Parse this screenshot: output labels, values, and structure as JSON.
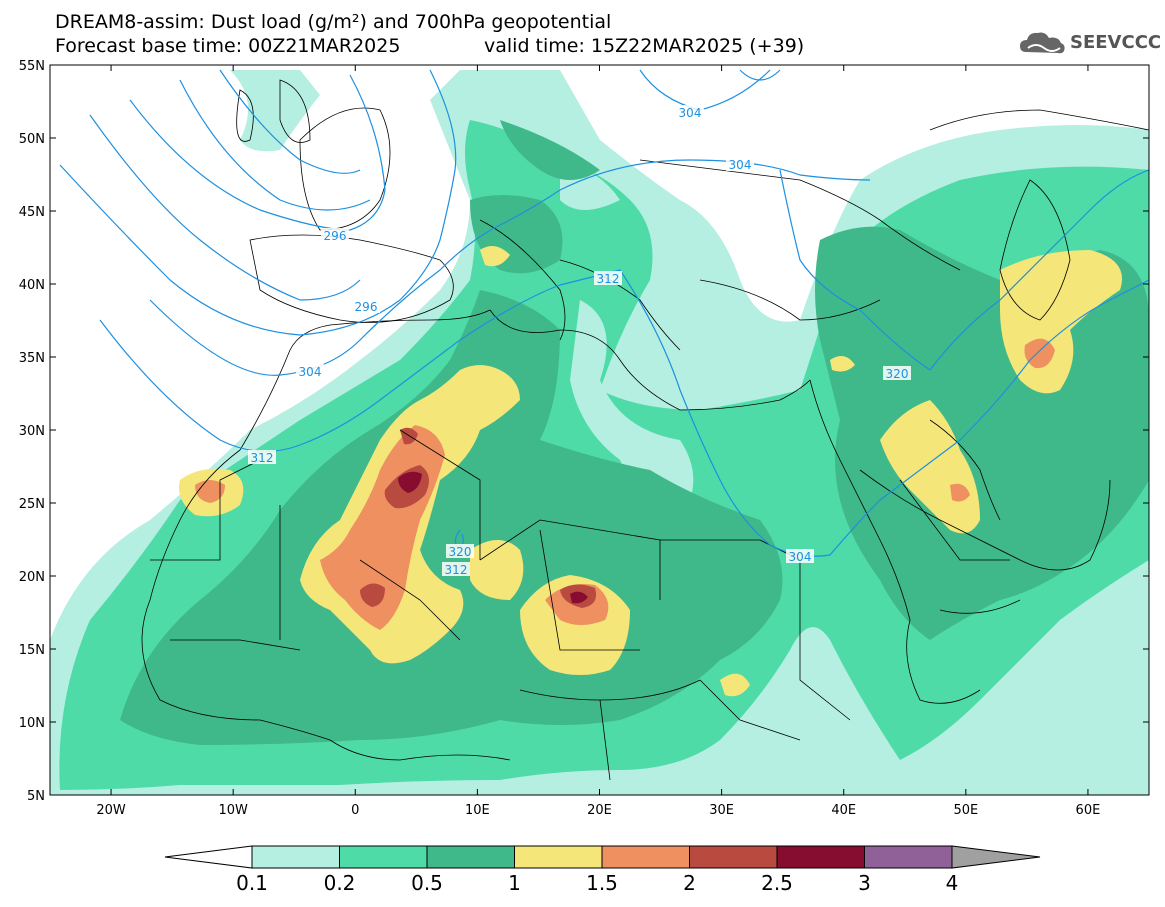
{
  "header": {
    "line1": "DREAM8-assim: Dust load (g/m²) and 700hPa geopotential",
    "line2": "Forecast base time: 00Z21MAR2025",
    "valid": "valid time: 15Z22MAR2025 (+39)"
  },
  "logo": {
    "text": "SEEVCCC",
    "icon": "cloud-logo-icon"
  },
  "axes": {
    "lat_labels": [
      "55N",
      "50N",
      "45N",
      "40N",
      "35N",
      "30N",
      "25N",
      "20N",
      "15N",
      "10N",
      "5N"
    ],
    "lon_labels": [
      "20W",
      "10W",
      "0",
      "10E",
      "20E",
      "30E",
      "40E",
      "50E",
      "60E"
    ],
    "lat_range": [
      5,
      55
    ],
    "lon_range": [
      -25,
      65
    ]
  },
  "contours": {
    "labels": [
      "296",
      "296",
      "304",
      "312",
      "304",
      "304",
      "312",
      "320",
      "320",
      "312",
      "304"
    ]
  },
  "colorbar": {
    "labels": [
      "0.1",
      "0.2",
      "0.5",
      "1",
      "1.5",
      "2",
      "2.5",
      "3",
      "4"
    ],
    "colors": [
      "#b4efe2",
      "#4fdba8",
      "#3fb88a",
      "#f5e67a",
      "#ee9060",
      "#b84a40",
      "#860c30",
      "#906098",
      "#a0a0a0"
    ]
  },
  "colors": {
    "border": "#000000",
    "contour": "#1e90e0",
    "c1": "#b4efe2",
    "c2": "#4fdba8",
    "c3": "#3fb88a",
    "c4": "#f5e67a",
    "c5": "#ee9060",
    "c6": "#b84a40",
    "c7": "#860c30"
  }
}
